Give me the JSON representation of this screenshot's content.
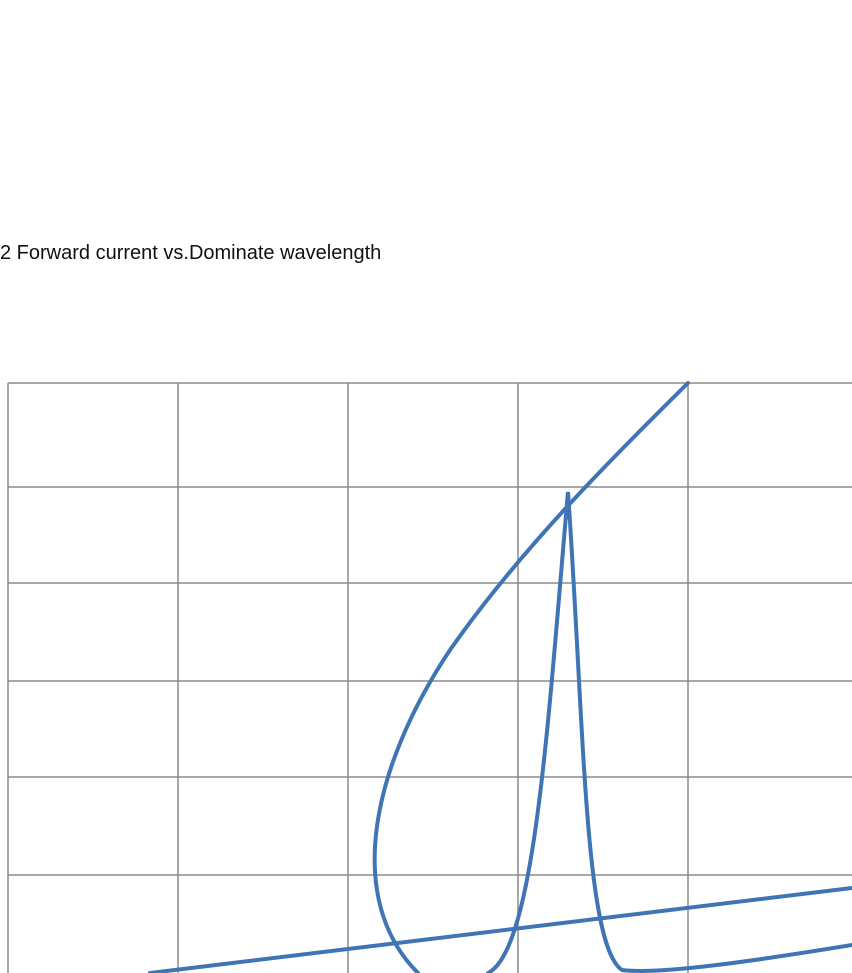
{
  "title": "2 Forward current vs.Dominate wavelength"
}
